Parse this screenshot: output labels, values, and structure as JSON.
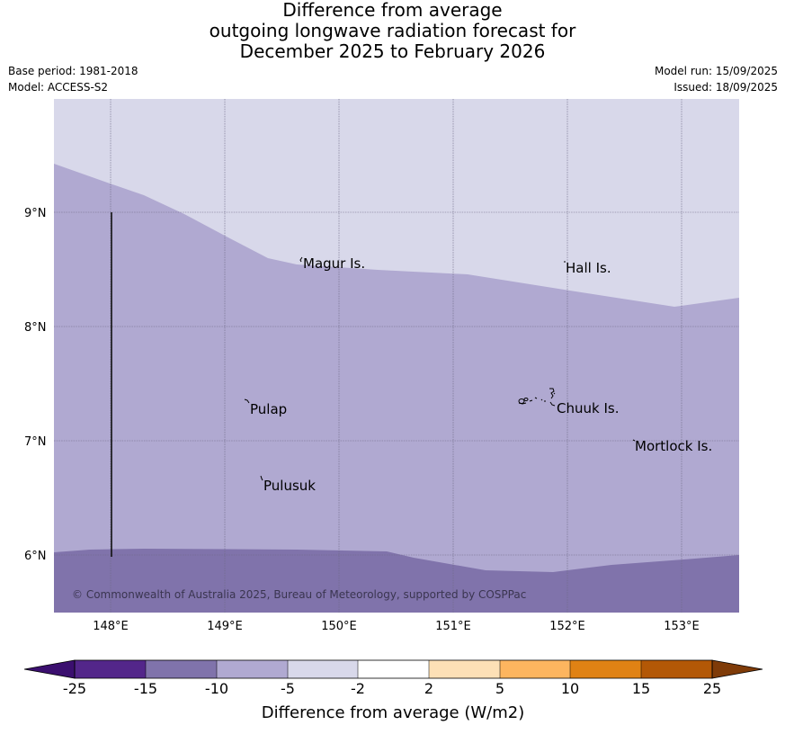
{
  "title": {
    "line1": "Difference from average",
    "line2": "outgoing longwave radiation forecast for",
    "line3": "December 2025 to February 2026"
  },
  "meta_left": {
    "base_period": "Base period: 1981-2018",
    "model": "Model: ACCESS-S2"
  },
  "meta_right": {
    "model_run": "Model run: 15/09/2025",
    "issued": "Issued: 18/09/2025"
  },
  "map": {
    "lon_ticks": [
      "148°E",
      "149°E",
      "150°E",
      "151°E",
      "152°E",
      "153°E"
    ],
    "lat_ticks": [
      "9°N",
      "8°N",
      "7°N",
      "6°N"
    ],
    "places": [
      {
        "name": "Magur Is."
      },
      {
        "name": "Hall Is."
      },
      {
        "name": "Pulap"
      },
      {
        "name": "Chuuk Is."
      },
      {
        "name": "Mortlock Is."
      },
      {
        "name": "Pulusuk"
      }
    ],
    "credit": "© Commonwealth of Australia 2025, Bureau of Meteorology, supported by COSPPac",
    "colors": {
      "band_-5_-2": "#d8d8ea",
      "band_-10_-5": "#b0a9d1",
      "band_-15_-10": "#8073ab"
    }
  },
  "colorbar": {
    "label": "Difference from average (W/m2)",
    "ticks": [
      "-25",
      "-15",
      "-10",
      "-5",
      "-2",
      "2",
      "5",
      "10",
      "15",
      "25"
    ],
    "colors": [
      "#3b0f6f",
      "#53268a",
      "#8073ab",
      "#b0a9d1",
      "#d8d8ea",
      "#ffffff",
      "#fde0b6",
      "#fdb55f",
      "#e08214",
      "#b35806",
      "#7f3b08"
    ]
  }
}
